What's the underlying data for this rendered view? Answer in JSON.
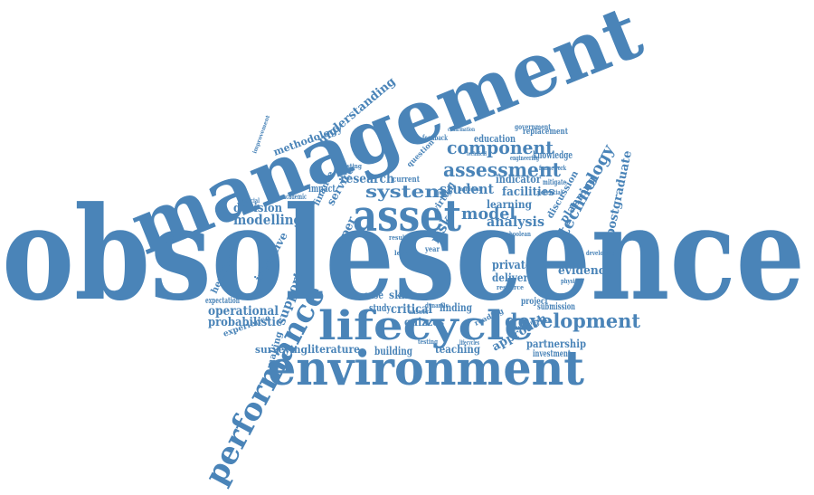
{
  "word_cloud": {
    "color": "#4a84b8",
    "words": [
      "obsolescence",
      "management",
      "environment",
      "lifecycle",
      "performance",
      "asset",
      "development",
      "assessment",
      "component",
      "system",
      "model",
      "technology",
      "research",
      "modelling",
      "operational",
      "probabilistic",
      "student",
      "analysis",
      "facilities",
      "decision",
      "evidence",
      "partnership",
      "approach",
      "teaching",
      "literature",
      "building",
      "surveying",
      "critical",
      "private",
      "delivery",
      "planning",
      "postgraduate",
      "learning",
      "indicator",
      "education",
      "knowledge",
      "paper",
      "service",
      "finance",
      "understanding",
      "methodology",
      "initiative",
      "healthcare",
      "support",
      "risk",
      "impact",
      "case",
      "skill",
      "study",
      "quizzes",
      "finding",
      "submission",
      "project",
      "investment",
      "experience",
      "expectation",
      "making",
      "replacement",
      "government",
      "discussion",
      "virtual",
      "current",
      "question",
      "academic",
      "financial",
      "costing",
      "feedback",
      "engineering",
      "framework",
      "mitigate",
      "potential",
      "boolean",
      "year",
      "result",
      "level",
      "physical",
      "resource",
      "dynamic",
      "answer",
      "testing",
      "lifecycles",
      "developing",
      "quality",
      "individual",
      "technical",
      "improvement",
      "reading",
      "resilience",
      "confirmation"
    ]
  }
}
